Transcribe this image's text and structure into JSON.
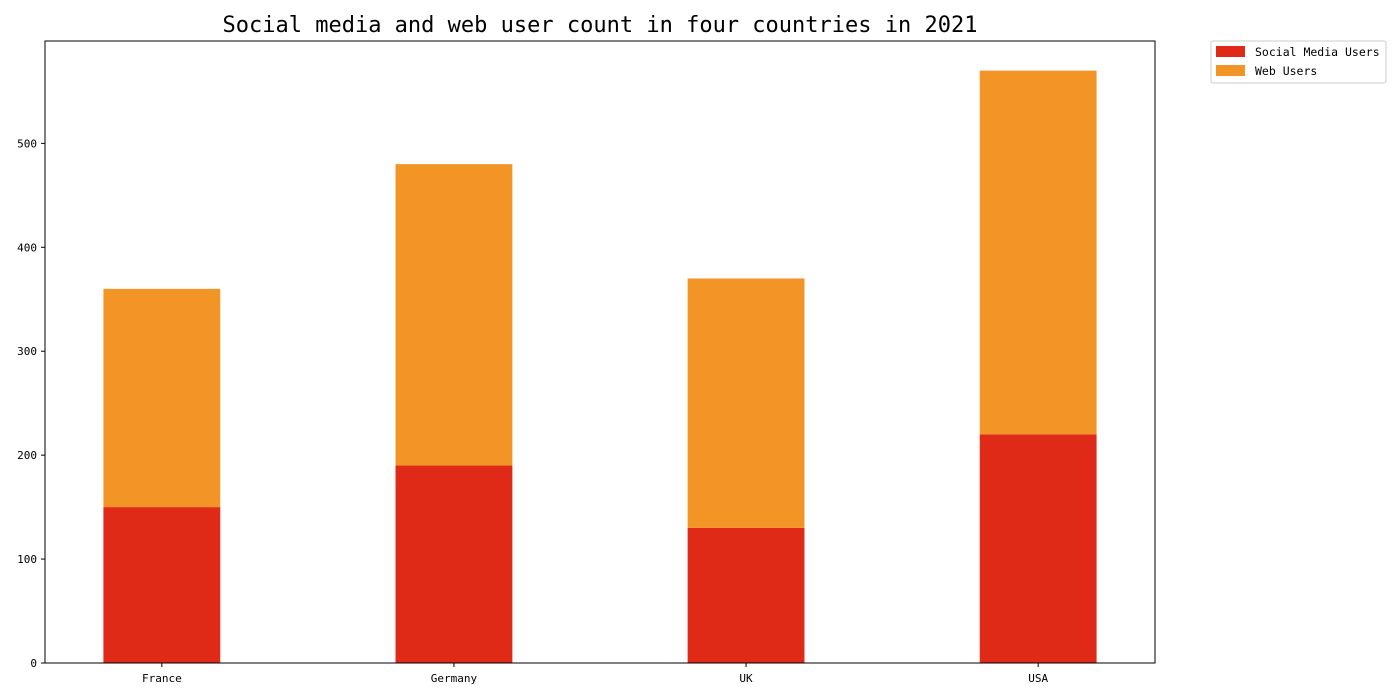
{
  "chart_data": {
    "type": "bar",
    "stacked": true,
    "title": "Social media and web user count in four countries in 2021",
    "xlabel": "",
    "ylabel": "",
    "categories": [
      "France",
      "Germany",
      "UK",
      "USA"
    ],
    "series": [
      {
        "name": "Social Media Users",
        "color": "#df2a17",
        "values": [
          150,
          190,
          130,
          220
        ]
      },
      {
        "name": "Web Users",
        "color": "#f29426",
        "values": [
          210,
          290,
          240,
          350
        ]
      }
    ],
    "ylim": [
      0,
      598.5
    ],
    "yticks": [
      0,
      100,
      200,
      300,
      400,
      500
    ],
    "grid": false,
    "legend_position": "outside-top-right"
  }
}
